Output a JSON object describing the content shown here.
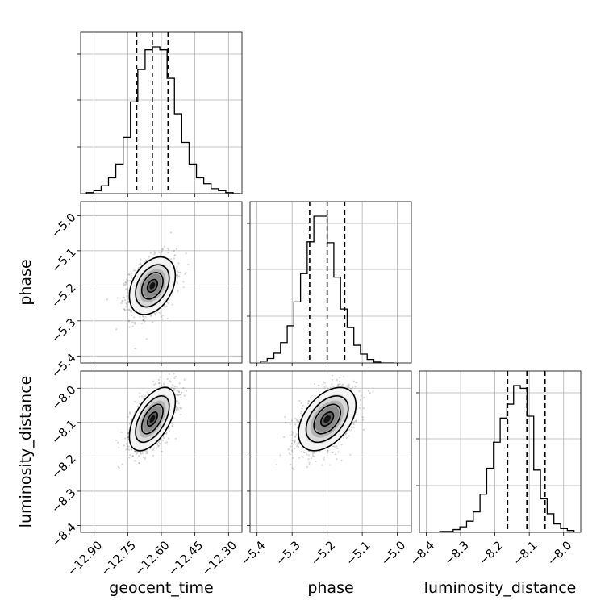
{
  "chart_data": {
    "type": "corner",
    "parameters": [
      "geocent_time",
      "phase",
      "luminosity_distance"
    ],
    "grid": true,
    "quantiles_shown": [
      0.16,
      0.5,
      0.84
    ],
    "axes": {
      "geocent_time": {
        "label": "geocent_time",
        "range": [
          -12.96,
          -12.24
        ],
        "ticks": [
          -12.9,
          -12.75,
          -12.6,
          -12.45,
          -12.3
        ],
        "tick_labels": [
          "−12.90",
          "−12.75",
          "−12.60",
          "−12.45",
          "−12.30"
        ],
        "quantiles": [
          -12.71,
          -12.64,
          -12.57
        ]
      },
      "phase": {
        "label": "phase",
        "range": [
          -5.42,
          -4.96
        ],
        "ticks": [
          -5.4,
          -5.3,
          -5.2,
          -5.1,
          -5.0
        ],
        "tick_labels": [
          "−5.4",
          "−5.3",
          "−5.2",
          "−5.1",
          "−5.0"
        ],
        "quantiles": [
          -5.25,
          -5.2,
          -5.15
        ]
      },
      "luminosity_distance": {
        "label": "luminosity_distance",
        "range": [
          -8.42,
          -7.95
        ],
        "ticks": [
          -8.4,
          -8.3,
          -8.2,
          -8.1,
          -8.0
        ],
        "tick_labels": [
          "−8.4",
          "−8.3",
          "−8.2",
          "−8.1",
          "−8.0"
        ],
        "quantiles": [
          -8.163,
          -8.107,
          -8.054
        ]
      }
    },
    "histograms": [
      {
        "param": "geocent_time",
        "bin_range": [
          -12.934,
          -12.247
        ],
        "counts": [
          1,
          3,
          8,
          16,
          30,
          57,
          93,
          126,
          146,
          149,
          146,
          117,
          81,
          52,
          30,
          16,
          10,
          5,
          3,
          1,
          0
        ]
      },
      {
        "param": "phase",
        "bin_range": [
          -5.39,
          -5.01
        ],
        "counts": [
          2,
          5,
          11,
          23,
          42,
          69,
          101,
          137,
          166,
          166,
          136,
          97,
          61,
          40,
          20,
          10,
          4,
          1,
          0,
          0
        ]
      },
      {
        "param": "luminosity_distance",
        "bin_range": [
          -8.4,
          -7.95
        ],
        "counts": [
          0,
          0,
          1,
          1,
          3,
          6,
          12,
          22,
          41,
          69,
          97,
          123,
          138,
          158,
          155,
          125,
          67,
          36,
          20,
          9,
          4,
          2,
          0
        ]
      }
    ],
    "posteriors_2d": [
      {
        "x": "geocent_time",
        "y": "phase",
        "center": [
          -12.64,
          -5.2
        ],
        "sd": [
          0.05,
          0.04
        ],
        "corr": 0.35
      },
      {
        "x": "geocent_time",
        "y": "luminosity_distance",
        "center": [
          -12.64,
          -8.09
        ],
        "sd": [
          0.05,
          0.045
        ],
        "corr": 0.55
      },
      {
        "x": "phase",
        "y": "luminosity_distance",
        "center": [
          -5.2,
          -8.09
        ],
        "sd": [
          0.04,
          0.045
        ],
        "corr": 0.45
      }
    ]
  }
}
